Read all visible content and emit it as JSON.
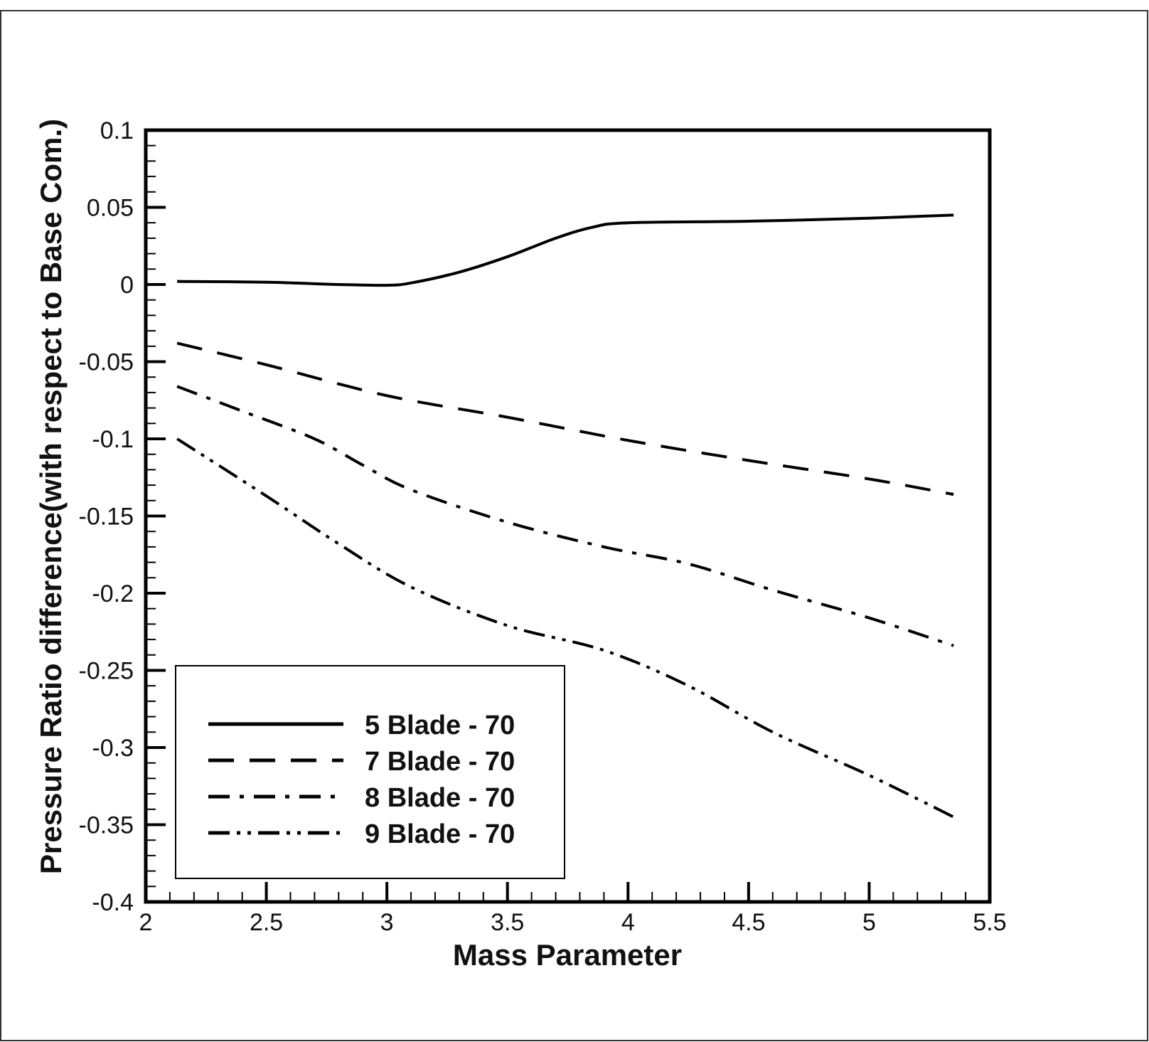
{
  "chart_data": {
    "type": "line",
    "title": "",
    "xlabel": "Mass Parameter",
    "ylabel": "Pressure Ratio difference(with respect to Base Com.)",
    "xlim": [
      2,
      5.5
    ],
    "ylim": [
      -0.4,
      0.1
    ],
    "x_ticks": [
      "2",
      "2.5",
      "3",
      "3.5",
      "4",
      "4.5",
      "5",
      "5.5"
    ],
    "y_ticks": [
      "0.1",
      "0.05",
      "0",
      "-0.05",
      "-0.1",
      "-0.15",
      "-0.2",
      "-0.25",
      "-0.3",
      "-0.35",
      "-0.4"
    ],
    "grid": false,
    "legend_position": "bottom-left",
    "series": [
      {
        "name": "5 Blade - 70",
        "dash": "solid",
        "x": [
          2.13,
          2.5,
          2.8,
          3.0,
          3.1,
          3.3,
          3.5,
          3.7,
          3.85,
          4.0,
          4.5,
          5.0,
          5.35
        ],
        "y": [
          0.002,
          0.0015,
          0.0,
          -0.0005,
          0.001,
          0.008,
          0.018,
          0.03,
          0.037,
          0.04,
          0.041,
          0.043,
          0.045
        ]
      },
      {
        "name": "7 Blade - 70",
        "dash": "dash",
        "x": [
          2.13,
          2.5,
          3.0,
          3.5,
          4.0,
          4.5,
          5.0,
          5.35
        ],
        "y": [
          -0.038,
          -0.052,
          -0.072,
          -0.086,
          -0.101,
          -0.114,
          -0.126,
          -0.136
        ]
      },
      {
        "name": "8 Blade - 70",
        "dash": "dashdot",
        "x": [
          2.13,
          2.4,
          2.7,
          2.9,
          3.1,
          3.5,
          3.9,
          4.25,
          4.6,
          5.0,
          5.35
        ],
        "y": [
          -0.066,
          -0.082,
          -0.1,
          -0.117,
          -0.133,
          -0.154,
          -0.17,
          -0.181,
          -0.198,
          -0.216,
          -0.234
        ]
      },
      {
        "name": "9 Blade - 70",
        "dash": "dashdotdot",
        "x": [
          2.13,
          2.5,
          2.8,
          3.1,
          3.5,
          3.9,
          4.25,
          4.6,
          5.0,
          5.35
        ],
        "y": [
          -0.1,
          -0.137,
          -0.168,
          -0.196,
          -0.221,
          -0.237,
          -0.26,
          -0.29,
          -0.318,
          -0.345
        ]
      }
    ]
  }
}
